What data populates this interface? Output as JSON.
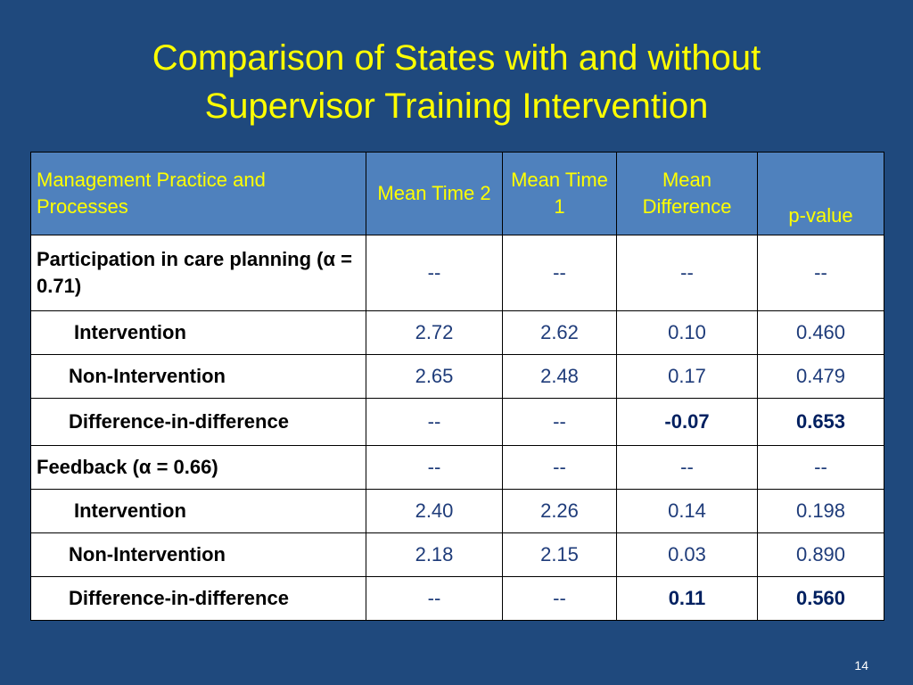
{
  "slide": {
    "title_line1": "Comparison of States with and without",
    "title_line2": "Supervisor Training  Intervention",
    "number": "14"
  },
  "table": {
    "headers": {
      "col1": "Management Practice and Processes",
      "col2": "Mean Time 2",
      "col3": "Mean Time 1",
      "col4": "Mean Difference",
      "col5": "p-value"
    },
    "rows": [
      {
        "label": "Participation in care planning (α = 0.71)",
        "t2": "--",
        "t1": "--",
        "diff": "--",
        "p": "--"
      },
      {
        "label": "Intervention",
        "t2": "2.72",
        "t1": "2.62",
        "diff": "0.10",
        "p": "0.460"
      },
      {
        "label": "Non-Intervention",
        "t2": "2.65",
        "t1": "2.48",
        "diff": "0.17",
        "p": "0.479"
      },
      {
        "label": "Difference-in-difference",
        "t2": "--",
        "t1": "--",
        "diff": "-0.07",
        "p": "0.653"
      },
      {
        "label": "Feedback (α = 0.66)",
        "t2": "--",
        "t1": "--",
        "diff": "--",
        "p": "--"
      },
      {
        "label": "Intervention",
        "t2": "2.40",
        "t1": "2.26",
        "diff": "0.14",
        "p": "0.198"
      },
      {
        "label": "Non-Intervention",
        "t2": "2.18",
        "t1": "2.15",
        "diff": "0.03",
        "p": "0.890"
      },
      {
        "label": "Difference-in-difference",
        "t2": "--",
        "t1": "--",
        "diff": "0.11",
        "p": "0.560"
      }
    ]
  },
  "colors": {
    "background": "#1f497d",
    "title": "#ffff00",
    "header_bg": "#4f81bd",
    "header_text": "#ffff00",
    "cell_bg": "#ffffff",
    "value_text": "#1f3c7a"
  }
}
